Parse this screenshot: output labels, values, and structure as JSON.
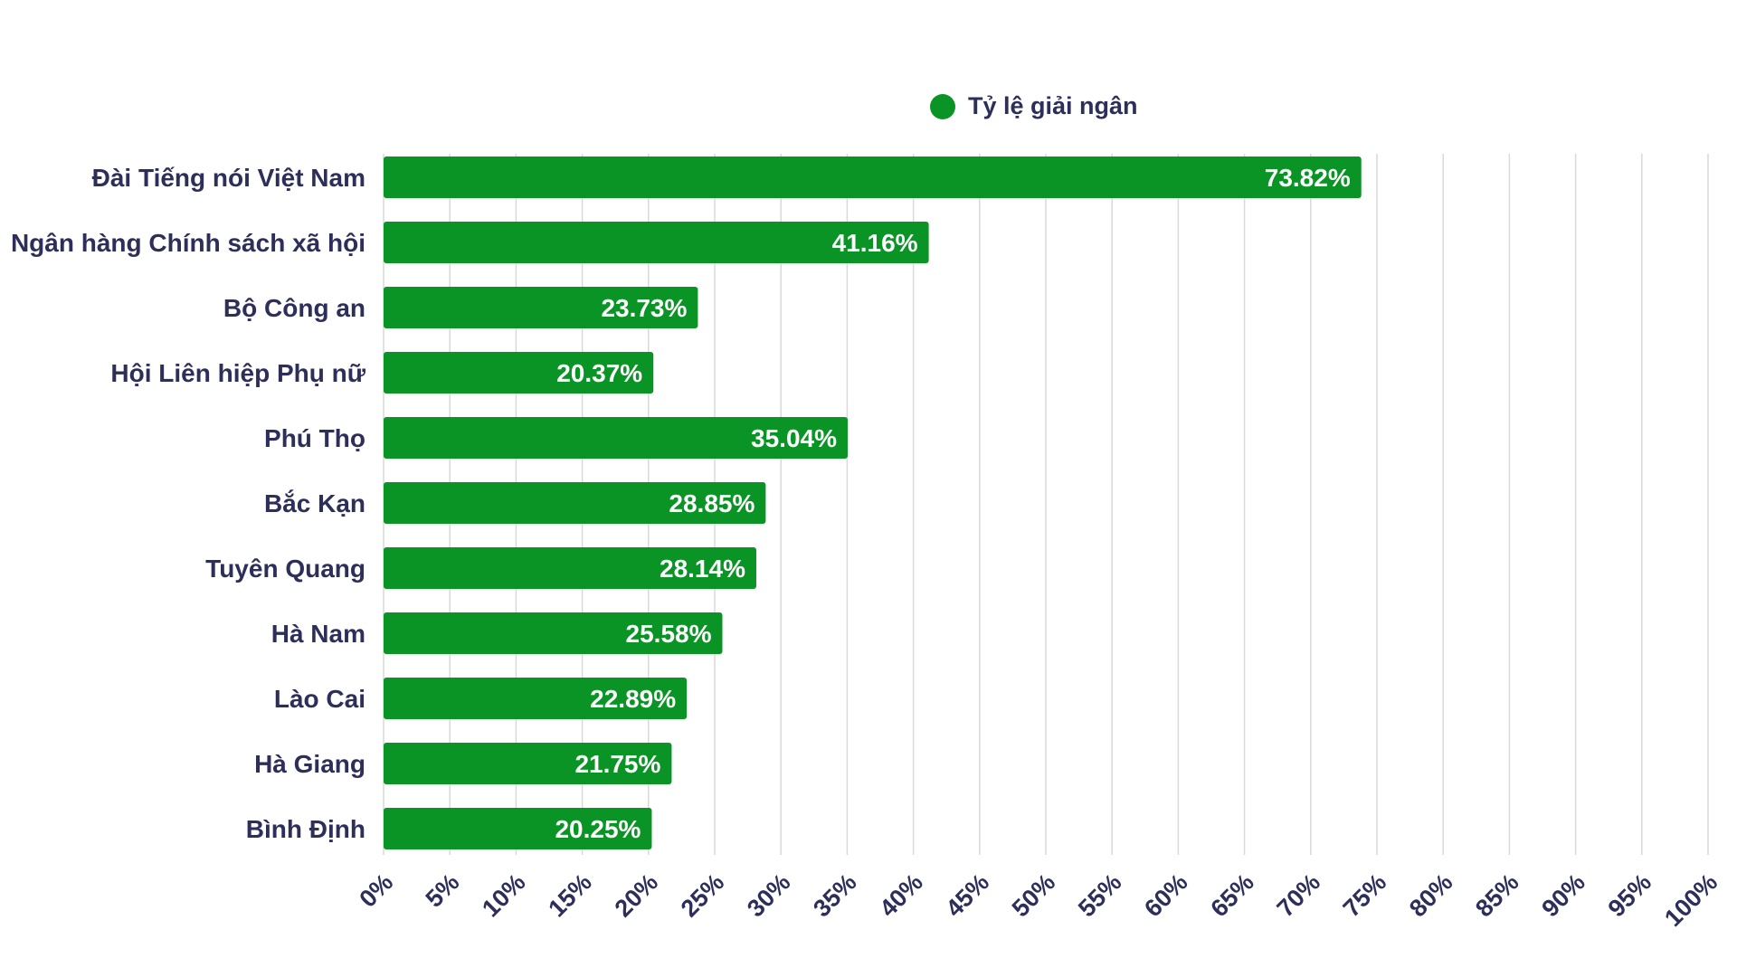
{
  "chart_data": {
    "type": "bar",
    "orientation": "horizontal",
    "categories": [
      "Đài Tiếng nói Việt Nam",
      "Ngân hàng Chính sách xã hội",
      "Bộ Công an",
      "Hội Liên hiệp Phụ nữ",
      "Phú Thọ",
      "Bắc Kạn",
      "Tuyên Quang",
      "Hà Nam",
      "Lào Cai",
      "Hà Giang",
      "Bình Định"
    ],
    "series": [
      {
        "name": "Tỷ lệ giải ngân",
        "color": "#0a9425",
        "values": [
          73.82,
          41.16,
          23.73,
          20.37,
          35.04,
          28.85,
          28.14,
          25.58,
          22.89,
          21.75,
          20.25
        ],
        "labels": [
          "73.82%",
          "41.16%",
          "23.73%",
          "20.37%",
          "35.04%",
          "28.85%",
          "28.14%",
          "25.58%",
          "22.89%",
          "21.75%",
          "20.25%"
        ]
      }
    ],
    "xlim": [
      0,
      100
    ],
    "x_ticks": [
      "0%",
      "5%",
      "10%",
      "15%",
      "20%",
      "25%",
      "30%",
      "35%",
      "40%",
      "45%",
      "50%",
      "55%",
      "60%",
      "65%",
      "70%",
      "75%",
      "80%",
      "85%",
      "90%",
      "95%",
      "100%"
    ],
    "grid": "vertical",
    "legend_position": "top"
  },
  "legend": {
    "label": "Tỷ lệ giải ngân",
    "color": "#0a9425"
  }
}
